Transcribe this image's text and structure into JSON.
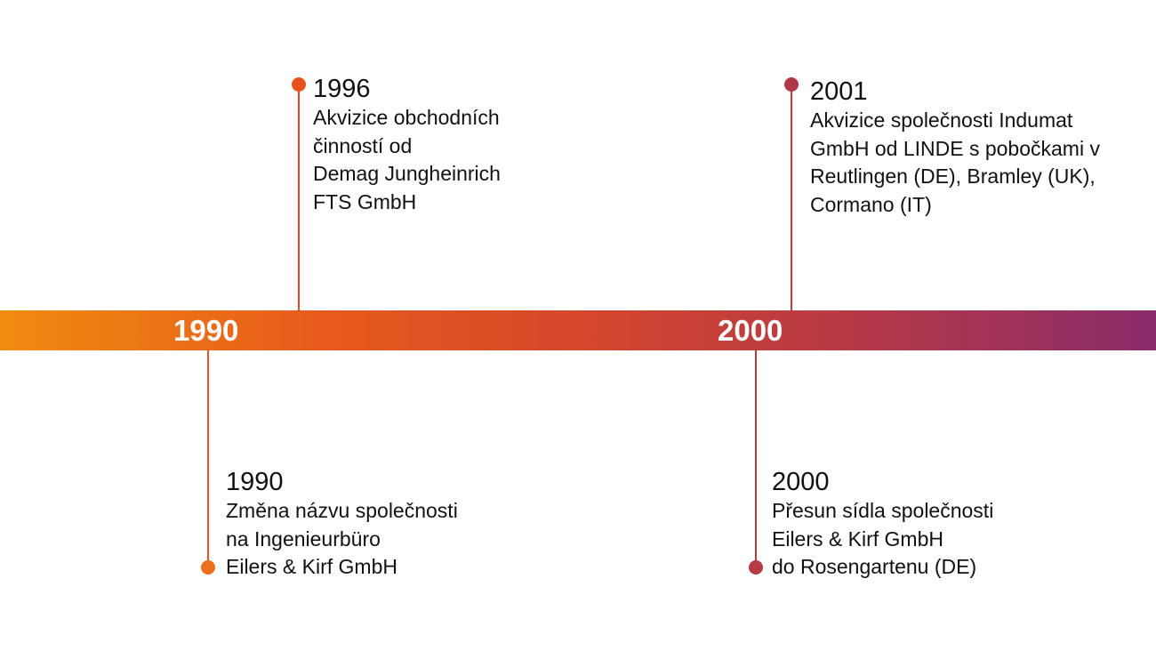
{
  "colors": {
    "band_start": "#f08c10",
    "band_end": "#8a2c6a",
    "marker_orange": "#e8591c",
    "marker_red": "#d9432a",
    "marker_dark": "#b03846",
    "marker_bottom_1990": "#ee6e1a",
    "marker_bottom_2000": "#b53a42"
  },
  "axis": {
    "labels": [
      "1990",
      "2000"
    ]
  },
  "events": [
    {
      "year": "1996",
      "lines": [
        "Akvizice obchodních",
        "činností od",
        "Demag Jungheinrich",
        "FTS GmbH"
      ]
    },
    {
      "year": "2001",
      "lines": [
        "Akvizice společnosti Indumat",
        "GmbH od LINDE s pobočkami v",
        "Reutlingen (DE), Bramley (UK),",
        "Cormano (IT)"
      ]
    },
    {
      "year": "1990",
      "lines": [
        "Změna názvu společnosti",
        "na Ingenieurbüro",
        "Eilers & Kirf GmbH"
      ]
    },
    {
      "year": "2000",
      "lines": [
        "Přesun sídla společnosti",
        "Eilers & Kirf GmbH",
        "do Rosengartenu (DE)"
      ]
    }
  ]
}
